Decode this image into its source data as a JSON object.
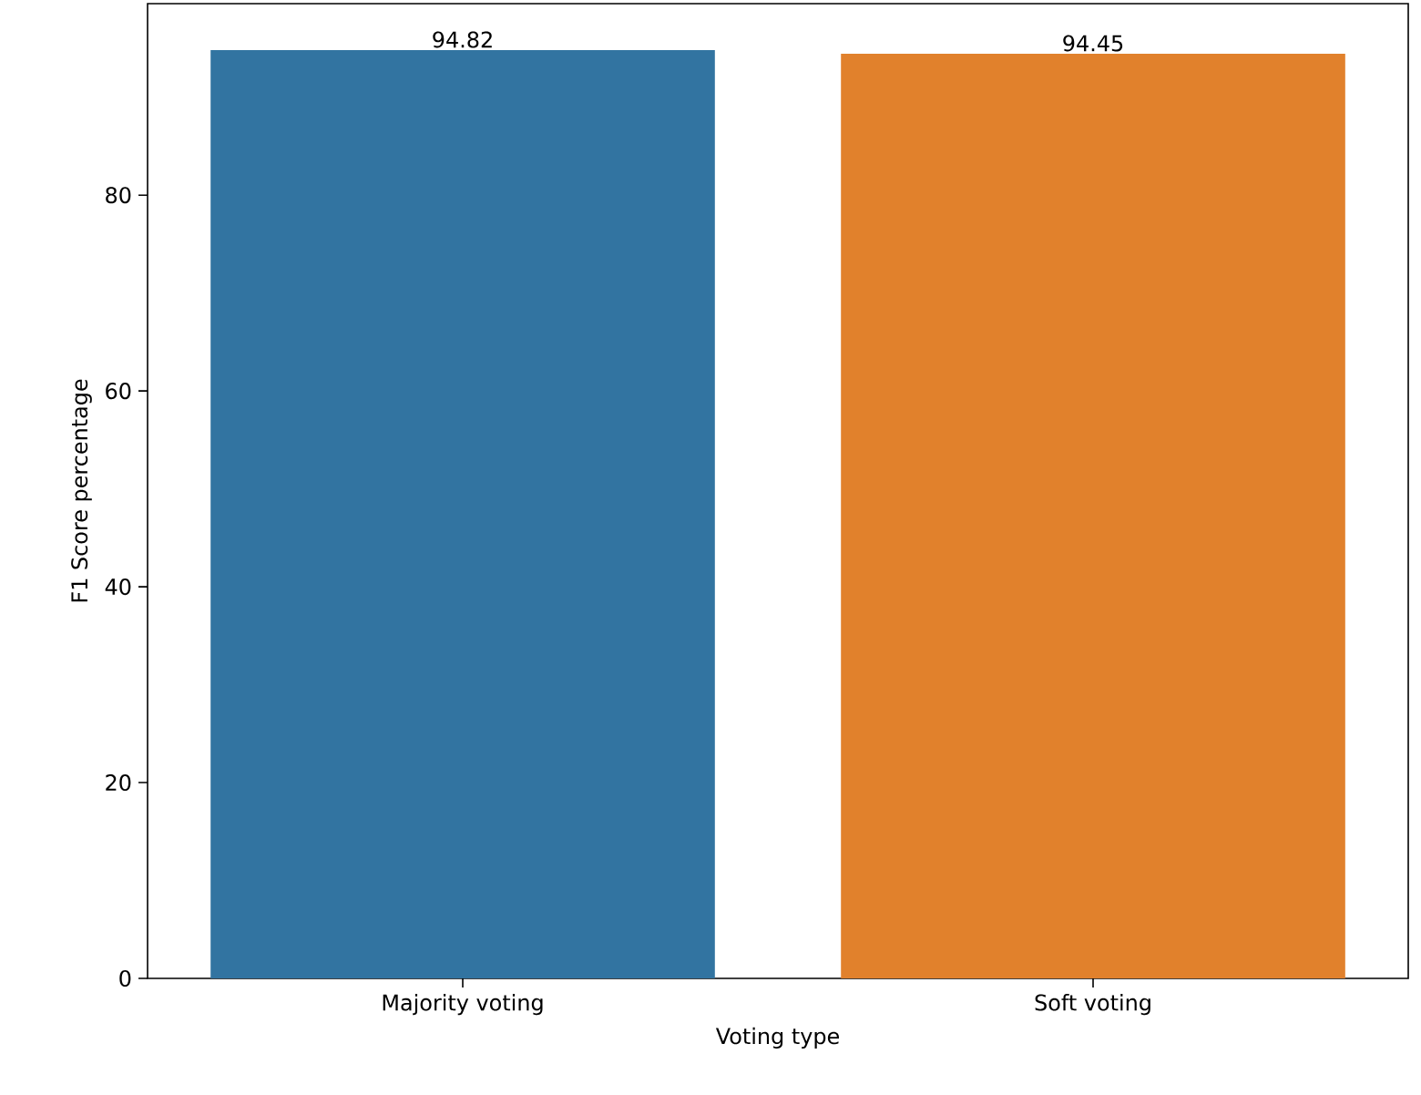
{
  "chart_data": {
    "type": "bar",
    "categories": [
      "Majority voting",
      "Soft voting"
    ],
    "values": [
      94.82,
      94.45
    ],
    "colors": [
      "#3274a1",
      "#e1812c"
    ],
    "xlabel": "Voting type",
    "ylabel": "F1 Score percentage",
    "ylim": [
      0,
      99.56
    ],
    "yticks": [
      0,
      20,
      40,
      60,
      80
    ],
    "data_labels": true
  }
}
